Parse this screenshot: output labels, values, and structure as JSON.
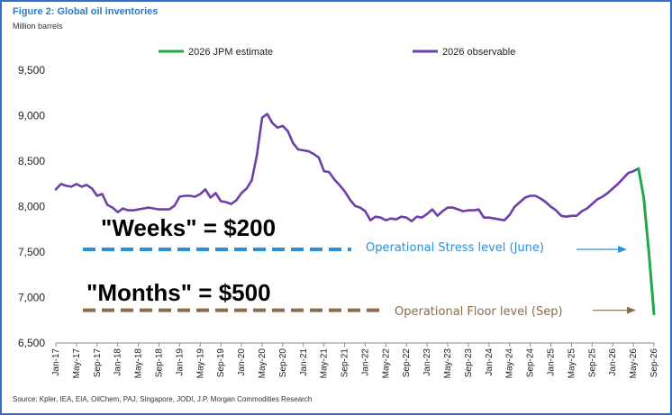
{
  "header": {
    "title": "Figure 2: Global oil inventories",
    "subtitle": "Million barrels"
  },
  "footer": {
    "source": "Source: Kpler, IEA, EIA, OilChem, PAJ, Singapore, JODI, J.P. Morgan Commodities Research"
  },
  "colors": {
    "observable": "#6e3fa8",
    "estimate": "#22a84a",
    "stress": "#2d8fd8",
    "floor": "#8b6b4a"
  },
  "chart_data": {
    "type": "line",
    "ylim": [
      6500,
      9700
    ],
    "yticks": [
      6500,
      7000,
      7500,
      8000,
      8500,
      9000,
      9500
    ],
    "ytick_labels": [
      "6,500",
      "7,000",
      "7,500",
      "8,000",
      "8,500",
      "9,000",
      "9,500"
    ],
    "xtick_labels": [
      "Jan-17",
      "May-17",
      "Sep-17",
      "Jan-18",
      "May-18",
      "Sep-18",
      "Jan-19",
      "May-19",
      "Sep-19",
      "Jan-20",
      "May-20",
      "Sep-20",
      "Jan-21",
      "May-21",
      "Sep-21",
      "Jan-22",
      "May-22",
      "Sep-22",
      "Jan-23",
      "May-23",
      "Sep-23",
      "Jan-24",
      "May-24",
      "Sep-24",
      "Jan-25",
      "May-25",
      "Sep-25",
      "Jan-26",
      "May-26",
      "Sep-26"
    ],
    "legend": [
      "2026 JPM estimate",
      "2026 observable"
    ],
    "legend_position": "top",
    "series": [
      {
        "name": "2026 observable",
        "x": [
          0,
          1,
          2,
          3,
          4,
          5,
          6,
          7,
          8,
          9,
          10,
          11,
          12,
          13,
          14,
          15,
          16,
          17,
          18,
          19,
          20,
          21,
          22,
          23,
          24,
          25,
          26,
          27,
          28,
          29,
          30,
          31,
          32,
          33,
          34,
          35,
          36,
          37,
          38,
          39,
          40,
          41,
          42,
          43,
          44,
          45,
          46,
          47,
          48,
          49,
          50,
          51,
          52,
          53,
          54,
          55,
          56,
          57,
          58,
          59,
          60,
          61,
          62,
          63,
          64,
          65,
          66,
          67,
          68,
          69,
          70,
          71,
          72,
          73,
          74,
          75,
          76,
          77,
          78,
          79,
          80,
          81,
          82,
          83,
          84,
          85,
          86,
          87,
          88,
          89,
          90,
          91,
          92,
          93,
          94,
          95,
          96,
          97,
          98,
          99,
          100,
          101,
          102,
          103,
          104,
          105,
          106,
          107,
          108,
          109,
          110,
          111,
          112,
          113
        ],
        "values": [
          8190,
          8250,
          8230,
          8220,
          8250,
          8220,
          8240,
          8200,
          8120,
          8140,
          8020,
          7990,
          7940,
          7980,
          7960,
          7960,
          7970,
          7980,
          7990,
          7980,
          7970,
          7970,
          7970,
          8010,
          8110,
          8120,
          8120,
          8110,
          8140,
          8190,
          8100,
          8150,
          8060,
          8050,
          8030,
          8070,
          8150,
          8200,
          8290,
          8570,
          8980,
          9020,
          8920,
          8870,
          8890,
          8830,
          8700,
          8630,
          8620,
          8610,
          8580,
          8540,
          8390,
          8380,
          8300,
          8240,
          8170,
          8080,
          8010,
          7990,
          7950,
          7850,
          7890,
          7880,
          7850,
          7870,
          7860,
          7890,
          7880,
          7840,
          7890,
          7880,
          7920,
          7970,
          7900,
          7950,
          7990,
          7990,
          7970,
          7950,
          7960,
          7960,
          7970,
          7880,
          7880,
          7870,
          7860,
          7850,
          7910,
          8000,
          8050,
          8100,
          8120,
          8120,
          8090,
          8050,
          8000,
          7960,
          7900,
          7890,
          7900,
          7900,
          7950,
          7980,
          8030,
          8080,
          8110,
          8150,
          8200,
          8250,
          8310,
          8370,
          8390,
          8420
        ]
      },
      {
        "name": "2026 JPM estimate",
        "x": [
          113,
          114,
          115,
          116
        ],
        "values": [
          8420,
          8100,
          7500,
          6820
        ]
      }
    ],
    "annotations": {
      "weeks_text": "\"Weeks\" = $200",
      "months_text": "\"Months\" = $500",
      "stress_label": "Operational Stress level (June)",
      "floor_label": "Operational Floor level (Sep)",
      "stress_level": 7530,
      "floor_level": 6860
    }
  }
}
